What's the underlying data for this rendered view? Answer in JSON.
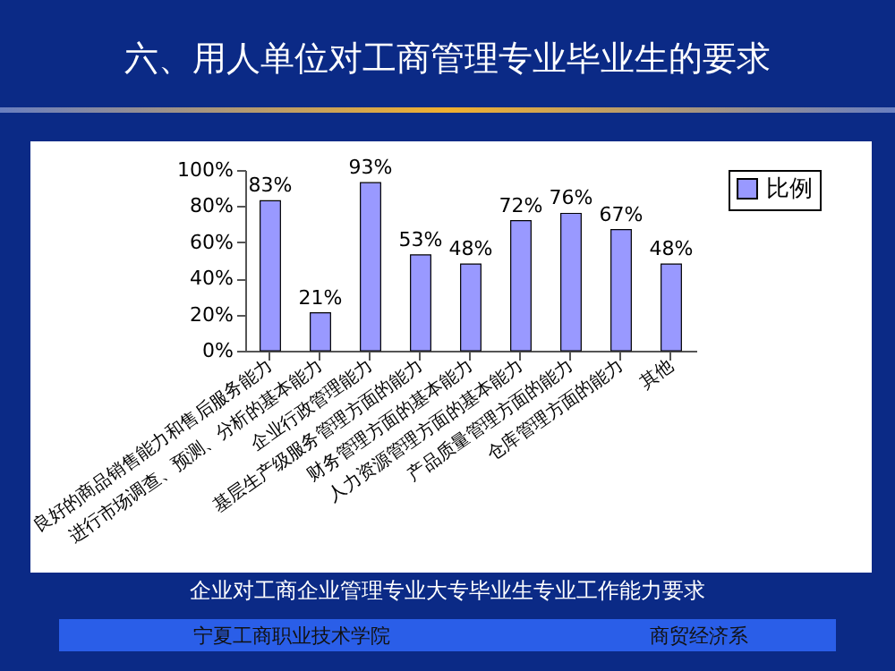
{
  "chart_data": {
    "type": "bar",
    "title": "六、用人单位对工商管理专业毕业生的要求",
    "subtitle": "企业对工商企业管理专业大专毕业生专业工作能力要求",
    "annotations": [
      "宁夏工商职业技术学院",
      "商贸经济系"
    ],
    "categories": [
      "良好的商品销售能力和售后服务能力",
      "进行市场调查、预测、分析的基本能力",
      "企业行政管理能力",
      "基层生产级服务管理方面的能力",
      "财务管理方面的基本能力",
      "人力资源管理方面的基本能力",
      "产品质量管理方面的能力",
      "仓库管理方面的能力",
      "其他"
    ],
    "series": [
      {
        "name": "比例",
        "color": "#9999ff",
        "values": [
          83,
          21,
          93,
          53,
          48,
          72,
          76,
          67,
          48
        ],
        "value_labels": [
          "83%",
          "21%",
          "93%",
          "53%",
          "48%",
          "72%",
          "76%",
          "67%",
          "48%"
        ]
      }
    ],
    "ylim": [
      0,
      100
    ],
    "yticks": [
      {
        "value": 0,
        "label": "0%"
      },
      {
        "value": 20,
        "label": "20%"
      },
      {
        "value": 40,
        "label": "40%"
      },
      {
        "value": 60,
        "label": "60%"
      },
      {
        "value": 80,
        "label": "80%"
      },
      {
        "value": 100,
        "label": "100%"
      }
    ],
    "legend": "right"
  }
}
